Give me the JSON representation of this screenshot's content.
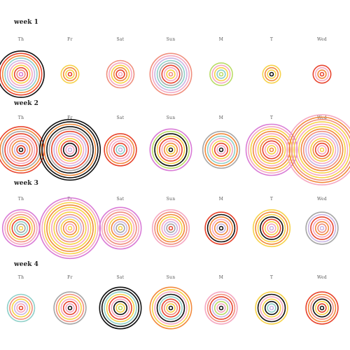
{
  "palette": {
    "b": "#111111",
    "r": "#e8452e",
    "o": "#f28a3c",
    "y": "#f6d24a",
    "p": "#f5a9c2",
    "m": "#d97bd6",
    "g": "#b9dc66",
    "t": "#8fd0c9",
    "l": "#c9b6e4",
    "s": "#a7a7a7",
    "k": "#f08f7e"
  },
  "weeks": [
    {
      "label": "week 1",
      "days": [
        {
          "label": "Th",
          "rings": "brotlpyrkm"
        },
        {
          "label": "Fr",
          "rings": "yoyr"
        },
        {
          "label": "Sat",
          "rings": "kpyorp"
        },
        {
          "label": "Sun",
          "rings": "kpltsrpyk"
        },
        {
          "label": "M",
          "rings": "gpytg"
        },
        {
          "label": "T",
          "rings": "yoyb"
        },
        {
          "label": "Wed",
          "rings": "rpor"
        }
      ]
    },
    {
      "label": "week 2",
      "days": [
        {
          "label": "Th",
          "rings": "rosrpkolrb"
        },
        {
          "label": "Fr",
          "rings": "bbobsrlpyrbpl"
        },
        {
          "label": "Sat",
          "rings": "ropprtl"
        },
        {
          "label": "Sun",
          "rings": "mgbyrpoyb"
        },
        {
          "label": "M",
          "rings": "sotpyrpb"
        },
        {
          "label": "T",
          "rings": "mpyopyorpyo"
        },
        {
          "label": "Wed",
          "rings": "pokypyoklpyorpy"
        }
      ]
    },
    {
      "label": "week 3",
      "days": [
        {
          "label": "Th",
          "rings": "mpkyrtsy"
        },
        {
          "label": "Fr",
          "rings": "mpyoypyklyopy"
        },
        {
          "label": "Sat",
          "rings": "mpkpyolsy"
        },
        {
          "label": "Sun",
          "rings": "pkoyplsr"
        },
        {
          "label": "M",
          "rings": "rbopolb"
        },
        {
          "label": "T",
          "rings": "yoybrypl"
        },
        {
          "label": "Wed",
          "rings": "slrpokl"
        }
      ]
    },
    {
      "label": "week 4",
      "days": [
        {
          "label": "Th",
          "rings": "tkylpr"
        },
        {
          "label": "Fr",
          "rings": "skyprpb"
        },
        {
          "label": "Sat",
          "rings": "bbtyrpbyg"
        },
        {
          "label": "Sun",
          "rings": "oypbtrkyb"
        },
        {
          "label": "M",
          "rings": "pkrlgpb"
        },
        {
          "label": "T",
          "rings": "ybpybtl"
        },
        {
          "label": "Wed",
          "rings": "rokbyrb"
        }
      ]
    }
  ]
}
